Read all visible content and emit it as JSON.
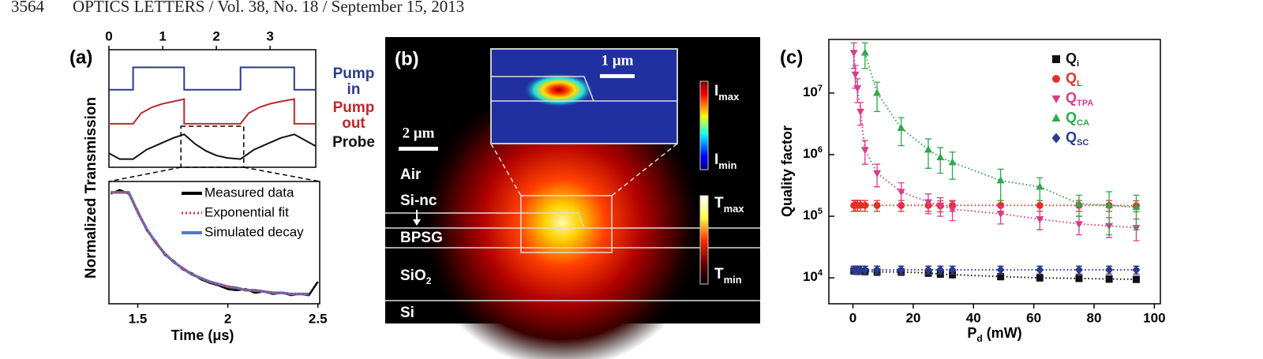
{
  "header": {
    "page": "3564",
    "journal": "OPTICS LETTERS / Vol. 38, No. 18 / September 15, 2013"
  },
  "chart_data": [
    {
      "type": "line",
      "panel_label": "(a)",
      "ylabel": "Normalized Transmission",
      "xlim": [
        0,
        3.85
      ],
      "xticks": [
        0,
        1,
        2,
        3
      ],
      "ylim": [
        0,
        1
      ],
      "series": [
        {
          "name": "Pump in",
          "color": "#2a3a8c",
          "x": [
            0,
            0.45,
            0.45,
            1.4,
            1.4,
            2.45,
            2.45,
            3.45,
            3.45,
            3.85
          ],
          "values": [
            0.66,
            0.66,
            0.85,
            0.85,
            0.66,
            0.66,
            0.85,
            0.85,
            0.66,
            0.66
          ]
        },
        {
          "name": "Pump out",
          "color": "#c0282a",
          "x": [
            0,
            0.45,
            0.6,
            0.8,
            1.0,
            1.2,
            1.4,
            1.4,
            2.45,
            2.6,
            2.8,
            3.0,
            3.2,
            3.45,
            3.45,
            3.85
          ],
          "values": [
            0.37,
            0.37,
            0.46,
            0.51,
            0.54,
            0.56,
            0.58,
            0.37,
            0.37,
            0.46,
            0.51,
            0.54,
            0.56,
            0.58,
            0.37,
            0.37
          ]
        },
        {
          "name": "Probe",
          "color": "#111111",
          "x": [
            0,
            0.2,
            0.45,
            0.7,
            1.0,
            1.2,
            1.4,
            1.6,
            1.8,
            2.0,
            2.2,
            2.45,
            2.7,
            3.0,
            3.2,
            3.45,
            3.85
          ],
          "values": [
            0.12,
            0.07,
            0.07,
            0.15,
            0.21,
            0.25,
            0.28,
            0.2,
            0.14,
            0.1,
            0.08,
            0.07,
            0.15,
            0.21,
            0.25,
            0.28,
            0.18
          ]
        }
      ]
    },
    {
      "type": "line",
      "xlabel": "Time (μs)",
      "xlim": [
        1.34,
        2.51
      ],
      "xticks": [
        1.5,
        2,
        2.5
      ],
      "ylim": [
        0,
        1
      ],
      "x": [
        1.35,
        1.4,
        1.45,
        1.5,
        1.55,
        1.6,
        1.65,
        1.7,
        1.75,
        1.8,
        1.85,
        1.9,
        1.95,
        2.0,
        2.05,
        2.1,
        2.15,
        2.2,
        2.25,
        2.3,
        2.35,
        2.4,
        2.45,
        2.5
      ],
      "series": [
        {
          "name": "Measured data",
          "color": "#000000",
          "dash": "solid",
          "values": [
            0.9,
            0.93,
            0.9,
            0.76,
            0.6,
            0.51,
            0.4,
            0.35,
            0.28,
            0.25,
            0.2,
            0.17,
            0.15,
            0.12,
            0.11,
            0.12,
            0.09,
            0.1,
            0.08,
            0.09,
            0.07,
            0.08,
            0.07,
            0.18
          ]
        },
        {
          "name": "Exponential fit",
          "color": "#e03030",
          "dash": "dotted",
          "values": [
            0.91,
            0.91,
            0.91,
            0.75,
            0.61,
            0.5,
            0.41,
            0.34,
            0.29,
            0.24,
            0.21,
            0.18,
            0.16,
            0.14,
            0.13,
            0.11,
            0.11,
            0.1,
            0.09,
            0.09,
            0.08,
            0.08,
            0.08,
            null
          ]
        },
        {
          "name": "Simulated decay",
          "color": "#5577cc",
          "dash": "solid",
          "values": [
            0.91,
            0.91,
            0.91,
            0.75,
            0.61,
            0.5,
            0.41,
            0.34,
            0.29,
            0.24,
            0.21,
            0.18,
            0.16,
            0.14,
            0.13,
            0.11,
            0.11,
            0.1,
            0.09,
            0.09,
            0.08,
            0.08,
            0.08,
            null
          ]
        }
      ]
    },
    {
      "type": "scatter",
      "panel_label": "(c)",
      "ylabel": "Quality factor",
      "xlabel": {
        "main": "P",
        "sub": "d",
        "rest": " (mW)"
      },
      "log_y": true,
      "xlim": [
        -8,
        102
      ],
      "xticks": [
        0,
        20,
        40,
        60,
        80,
        100
      ],
      "ylim": [
        3800,
        74000000
      ],
      "yticks": [
        {
          "value": 10000,
          "label": "10",
          "sup": "4"
        },
        {
          "value": 100000,
          "label": "10",
          "sup": "5"
        },
        {
          "value": 1000000,
          "label": "10",
          "sup": "6"
        },
        {
          "value": 10000000,
          "label": "10",
          "sup": "7"
        }
      ],
      "x": [
        0.3,
        0.8,
        1.5,
        2.5,
        4,
        8,
        16,
        25,
        29,
        33,
        49,
        62,
        75,
        85,
        94
      ],
      "series": [
        {
          "name": "Q",
          "subscript": "i",
          "color": "#111111",
          "marker": "square",
          "values": [
            13000,
            13000,
            12800,
            12900,
            12700,
            12500,
            12500,
            12000,
            11500,
            11300,
            10500,
            10000,
            9800,
            9600,
            9500
          ],
          "errors": [
            1500,
            1500,
            1500,
            1500,
            1500,
            1500,
            1500,
            1400,
            1300,
            1300,
            1200,
            1100,
            1100,
            1100,
            1100
          ]
        },
        {
          "name": "Q",
          "subscript": "L",
          "color": "#e0302a",
          "marker": "circle",
          "values": [
            150000,
            152000,
            150000,
            151000,
            150000,
            150000,
            150000,
            150000,
            148000,
            150000,
            150000,
            150000,
            150000,
            150000,
            148000
          ],
          "errors": [
            30000,
            30000,
            30000,
            30000,
            30000,
            30000,
            30000,
            30000,
            30000,
            30000,
            30000,
            30000,
            30000,
            30000,
            30000
          ]
        },
        {
          "name": "Q",
          "subscript": "TPA",
          "color": "#d83c8c",
          "marker": "triangle-down",
          "values": [
            45000000,
            20000000,
            12000000,
            5000000,
            1200000,
            500000,
            250000,
            170000,
            150000,
            130000,
            110000,
            90000,
            75000,
            70000,
            65000
          ],
          "errors": [
            20000000,
            8000000,
            5000000,
            2000000,
            500000,
            200000,
            100000,
            60000,
            50000,
            45000,
            35000,
            30000,
            25000,
            25000,
            25000
          ]
        },
        {
          "name": "Q",
          "subscript": "CA",
          "color": "#2ea84a",
          "marker": "triangle-up",
          "values": [
            null,
            null,
            null,
            null,
            45000000,
            10000000,
            2700000,
            1200000,
            900000,
            750000,
            380000,
            300000,
            160000,
            150000,
            140000
          ],
          "errors": [
            null,
            null,
            null,
            null,
            20000000,
            5000000,
            1300000,
            600000,
            400000,
            350000,
            200000,
            120000,
            60000,
            100000,
            80000
          ]
        },
        {
          "name": "Q",
          "subscript": "SC",
          "color": "#2a3a8c",
          "marker": "diamond",
          "values": [
            13500,
            13500,
            13500,
            13500,
            13500,
            13500,
            13500,
            13500,
            13500,
            13500,
            13500,
            13500,
            13500,
            13500,
            13500
          ],
          "errors": [
            2000,
            2000,
            2000,
            2000,
            2000,
            2000,
            2000,
            2000,
            2000,
            2000,
            2000,
            2000,
            2000,
            2000,
            2000
          ]
        }
      ]
    }
  ],
  "panel_b": {
    "label": "(b)",
    "inset_scale": "1 μm",
    "scale": "2 μm",
    "layers": {
      "air": "Air",
      "sinc": "Si-nc",
      "bpsg": "BPSG",
      "sio2": {
        "main": "SiO",
        "sub": "2"
      },
      "si": "Si"
    },
    "intensity_bar": {
      "max": {
        "main": "I",
        "sub": "max"
      },
      "min": {
        "main": "I",
        "sub": "min"
      }
    },
    "temperature_bar": {
      "max": {
        "main": "T",
        "sub": "max"
      },
      "min": {
        "main": "T",
        "sub": "min"
      }
    }
  }
}
